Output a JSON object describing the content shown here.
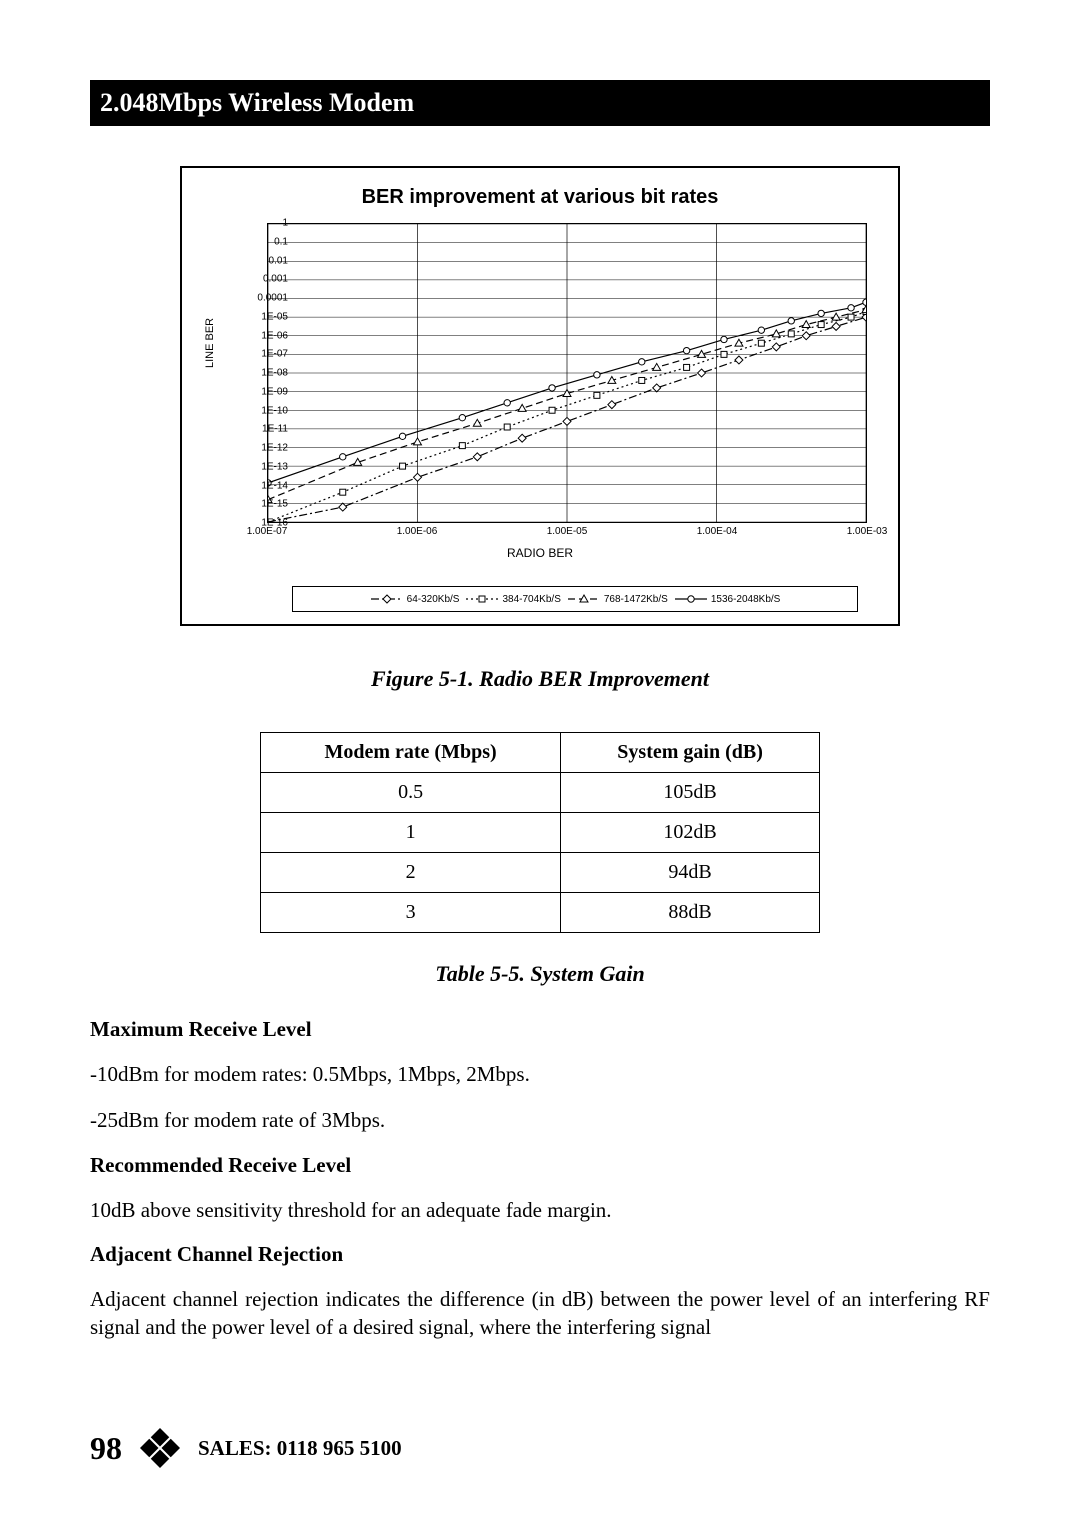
{
  "header": {
    "title": "2.048Mbps Wireless Modem"
  },
  "chart": {
    "type": "line",
    "title": "BER improvement at various bit rates",
    "title_fontsize": 20,
    "x_label": "RADIO BER",
    "y_label": "LINE BER",
    "background_color": "#ffffff",
    "border_color": "#000000",
    "grid_color": "#000000",
    "x_scale": "log",
    "y_scale": "log",
    "xlim": [
      1e-07,
      0.001
    ],
    "ylim": [
      1e-16,
      1
    ],
    "x_ticks": [
      "1.00E-07",
      "1.00E-06",
      "1.00E-05",
      "1.00E-04",
      "1.00E-03"
    ],
    "y_ticks": [
      "1",
      "0.1",
      "0.01",
      "0.001",
      "0.0001",
      "1E-05",
      "1E-06",
      "1E-07",
      "1E-08",
      "1E-09",
      "1E-10",
      "1E-11",
      "1E-12",
      "1E-13",
      "1E-14",
      "1E-15",
      "1E-16"
    ],
    "tick_fontsize": 10,
    "label_fontsize": 12,
    "line_color": "#000000",
    "line_width": 1.2,
    "series": [
      {
        "name": "64-320Kb/S",
        "marker": "diamond",
        "dash": "dash-dot",
        "x_exp": [
          -7,
          -6.5,
          -6.0,
          -5.6,
          -5.3,
          -5.0,
          -4.7,
          -4.4,
          -4.1,
          -3.85,
          -3.6,
          -3.4,
          -3.2,
          -3.0
        ],
        "y_exp": [
          -16,
          -15.2,
          -13.6,
          -12.5,
          -11.5,
          -10.6,
          -9.7,
          -8.8,
          -8.0,
          -7.3,
          -6.6,
          -6.0,
          -5.5,
          -5.0
        ]
      },
      {
        "name": "384-704Kb/S",
        "marker": "square",
        "dash": "dot",
        "x_exp": [
          -7,
          -6.5,
          -6.1,
          -5.7,
          -5.4,
          -5.1,
          -4.8,
          -4.5,
          -4.2,
          -3.95,
          -3.7,
          -3.5,
          -3.3,
          -3.1,
          -3.0
        ],
        "y_exp": [
          -16,
          -14.4,
          -13.0,
          -11.9,
          -10.9,
          -10.0,
          -9.2,
          -8.4,
          -7.7,
          -7.0,
          -6.4,
          -5.9,
          -5.4,
          -5.0,
          -4.7
        ]
      },
      {
        "name": "768-1472Kb/S",
        "marker": "triangle",
        "dash": "dash",
        "x_exp": [
          -7,
          -6.4,
          -6.0,
          -5.6,
          -5.3,
          -5.0,
          -4.7,
          -4.4,
          -4.1,
          -3.85,
          -3.6,
          -3.4,
          -3.2,
          -3.0
        ],
        "y_exp": [
          -14.8,
          -12.8,
          -11.7,
          -10.7,
          -9.9,
          -9.1,
          -8.4,
          -7.7,
          -7.0,
          -6.4,
          -5.9,
          -5.4,
          -5.0,
          -4.6
        ]
      },
      {
        "name": "1536-2048Kb/S",
        "marker": "circle",
        "dash": "solid",
        "x_exp": [
          -7,
          -6.5,
          -6.1,
          -5.7,
          -5.4,
          -5.1,
          -4.8,
          -4.5,
          -4.2,
          -3.95,
          -3.7,
          -3.5,
          -3.3,
          -3.1,
          -3.0
        ],
        "y_exp": [
          -13.9,
          -12.5,
          -11.4,
          -10.4,
          -9.6,
          -8.8,
          -8.1,
          -7.4,
          -6.8,
          -6.2,
          -5.7,
          -5.2,
          -4.8,
          -4.5,
          -4.2
        ]
      }
    ]
  },
  "figure_caption": "Figure 5-1. Radio BER Improvement",
  "table": {
    "columns": [
      "Modem rate (Mbps)",
      "System gain (dB)"
    ],
    "rows": [
      [
        "0.5",
        "105dB"
      ],
      [
        "1",
        "102dB"
      ],
      [
        "2",
        "94dB"
      ],
      [
        "3",
        "88dB"
      ]
    ],
    "border_color": "#000000",
    "header_fontsize": 20,
    "cell_fontsize": 20,
    "col_align": [
      "center",
      "center"
    ]
  },
  "table_caption": "Table 5-5. System Gain",
  "sections": {
    "max_receive": {
      "heading": "Maximum Receive Level",
      "p1": "-10dBm for modem rates: 0.5Mbps, 1Mbps, 2Mbps.",
      "p2": "-25dBm for modem rate of 3Mbps."
    },
    "rec_receive": {
      "heading": "Recommended Receive Level",
      "p1": "10dB above sensitivity threshold for an adequate fade margin."
    },
    "adj_channel": {
      "heading": "Adjacent Channel Rejection",
      "p1": "Adjacent channel rejection indicates the difference (in dB) between the power level of an interfering RF signal and the power level of a desired signal, where the interfering signal"
    }
  },
  "footer": {
    "page_number": "98",
    "sales_label": "SALES: 0118 965 5100",
    "logo_color": "#000000"
  }
}
